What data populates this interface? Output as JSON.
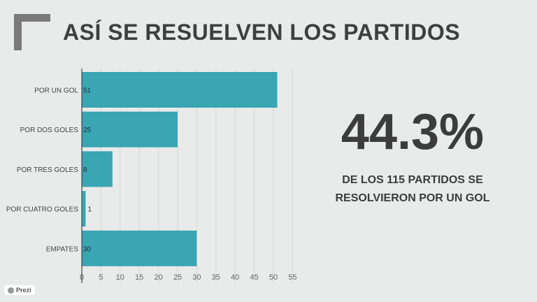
{
  "title": "ASÍ SE RESUELVEN LOS PARTIDOS",
  "highlight": {
    "value": "44.3%",
    "caption_line1": "DE LOS 115 PARTIDOS SE",
    "caption_line2": "RESOLVIERON POR UN GOL"
  },
  "brand": "Prezi",
  "colors": {
    "bar": "#3aa5b3",
    "grid": "#d4d6d6"
  },
  "chart_data": {
    "type": "bar",
    "orientation": "horizontal",
    "categories": [
      "POR UN GOL",
      "POR DOS GOLES",
      "POR TRES GOLES",
      "POR CUATRO GOLES",
      "EMPATES"
    ],
    "values": [
      51,
      25,
      8,
      1,
      30
    ],
    "xlim": [
      0,
      55
    ],
    "xticks": [
      0,
      5,
      10,
      15,
      20,
      25,
      30,
      35,
      40,
      45,
      50,
      55
    ],
    "grid": true
  }
}
